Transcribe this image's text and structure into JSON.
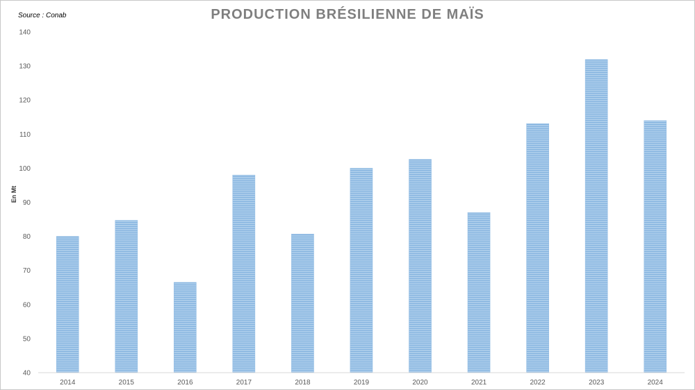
{
  "source_note": "Source : Conab",
  "chart_data": {
    "type": "bar",
    "title": "PRODUCTION BRÉSILIENNE DE MAÏS",
    "xlabel": "",
    "ylabel": "En Mt",
    "categories": [
      "2014",
      "2015",
      "2016",
      "2017",
      "2018",
      "2019",
      "2020",
      "2021",
      "2022",
      "2023",
      "2024"
    ],
    "values": [
      80,
      84.7,
      66.5,
      98,
      80.7,
      100,
      102.6,
      87,
      113.1,
      131.9,
      114
    ],
    "ylim": [
      40,
      140
    ],
    "yticks": [
      "40",
      "50",
      "60",
      "70",
      "80",
      "90",
      "100",
      "110",
      "120",
      "130",
      "140"
    ],
    "grid": false,
    "legend": "none",
    "bar_color": "#9dc3e6",
    "bar_stripe_color": "#7fb0dc"
  }
}
